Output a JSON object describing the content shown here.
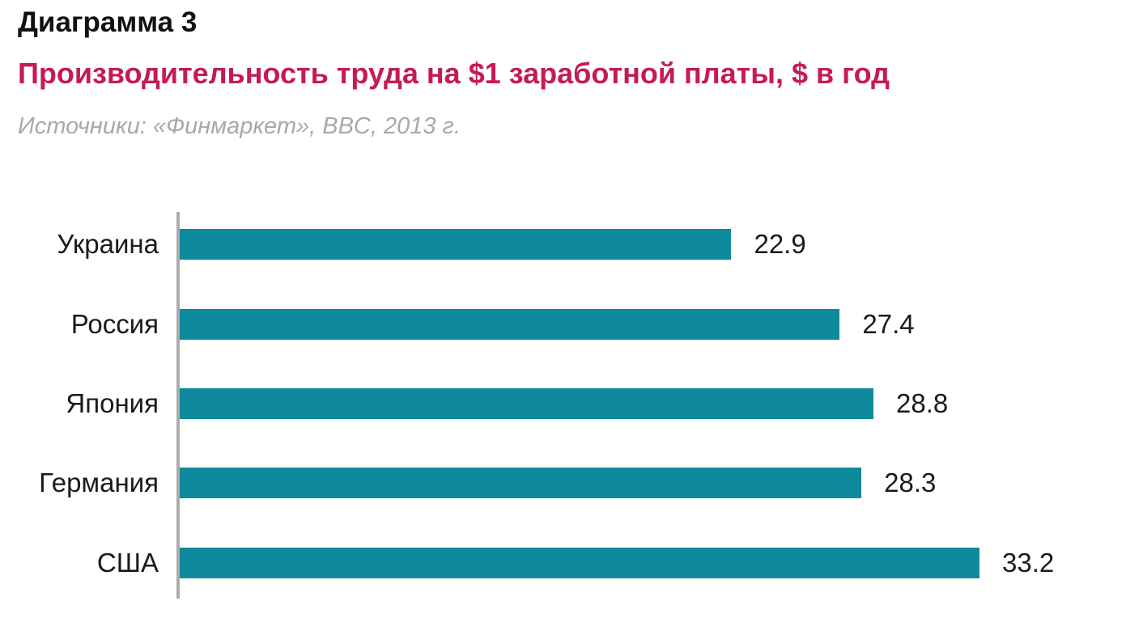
{
  "header": {
    "title": "Диаграмма 3",
    "subtitle": "Производительность труда на $1 заработной платы, $ в год",
    "source": "Источники: «Финмаркет», BBC, 2013 г."
  },
  "colors": {
    "bar": "#0e8a9c",
    "subtitle": "#c51a58",
    "source": "#a8a8a8",
    "axis": "#ababab",
    "text": "#1a1a1a"
  },
  "chart_data": {
    "type": "bar",
    "orientation": "horizontal",
    "title": "Производительность труда на $1 заработной платы, $ в год",
    "subtitle_label": "Диаграмма 3",
    "source": "Источники: «Финмаркет», BBC, 2013 г.",
    "categories": [
      "Украина",
      "Россия",
      "Япония",
      "Германия",
      "США"
    ],
    "values": [
      22.9,
      27.4,
      28.8,
      28.3,
      33.2
    ],
    "value_labels": [
      "22.9",
      "27.4",
      "28.8",
      "28.3",
      "33.2"
    ],
    "xlabel": "",
    "ylabel": "",
    "xlim": [
      0,
      33.2
    ],
    "grid": false,
    "legend": false,
    "bar_color": "#0e8a9c"
  }
}
